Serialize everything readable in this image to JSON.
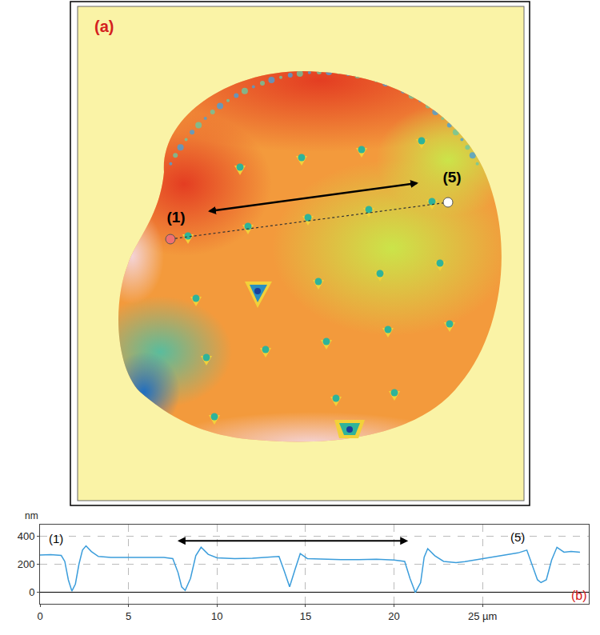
{
  "image_panel": {
    "label": "(a)",
    "points": [
      {
        "label": "(1)"
      },
      {
        "label": "(5)"
      }
    ]
  },
  "chart_data": {
    "type": "line",
    "panel_label": "(b)",
    "y_axis_label": "nm",
    "color": "#3b9ddb",
    "grid": true,
    "x": [
      0,
      0.6,
      1.2,
      1.4,
      1.6,
      1.8,
      2.0,
      2.2,
      2.4,
      2.6,
      2.9,
      3.3,
      4,
      5,
      6,
      7,
      7.5,
      7.8,
      8.0,
      8.2,
      8.5,
      8.8,
      9.1,
      9.5,
      10,
      11,
      12,
      13,
      13.5,
      13.8,
      14.1,
      14.4,
      14.7,
      15.1,
      16,
      17,
      18,
      19,
      20,
      20.6,
      20.9,
      21.2,
      21.5,
      21.7,
      21.9,
      22.3,
      22.8,
      23.5,
      24,
      25,
      26,
      27,
      27.5,
      27.8,
      28.1,
      28.3,
      28.6,
      28.9,
      29.2,
      29.6,
      30,
      30.5
    ],
    "values": [
      265,
      268,
      262,
      220,
      90,
      10,
      60,
      200,
      300,
      330,
      290,
      255,
      248,
      247,
      245,
      248,
      240,
      140,
      40,
      15,
      100,
      260,
      320,
      270,
      245,
      240,
      242,
      248,
      255,
      150,
      40,
      160,
      275,
      240,
      235,
      233,
      232,
      235,
      230,
      220,
      100,
      0,
      70,
      250,
      310,
      260,
      220,
      212,
      218,
      238,
      258,
      280,
      300,
      200,
      90,
      70,
      90,
      230,
      320,
      285,
      290,
      285
    ],
    "xlim": [
      0,
      31
    ],
    "xticks": [
      0,
      5,
      10,
      15,
      20,
      {
        "value": 25,
        "label": "25 µm"
      }
    ],
    "ylim": [
      -80,
      480
    ],
    "yticks": [
      0,
      200,
      400
    ],
    "annotations": [
      {
        "text": "(1)",
        "x": 0.9,
        "y": 380
      },
      {
        "text": "(5)",
        "x": 27.0,
        "y": 395
      }
    ],
    "arrow": {
      "x0": 7.7,
      "x1": 20.8,
      "y": 365
    }
  }
}
